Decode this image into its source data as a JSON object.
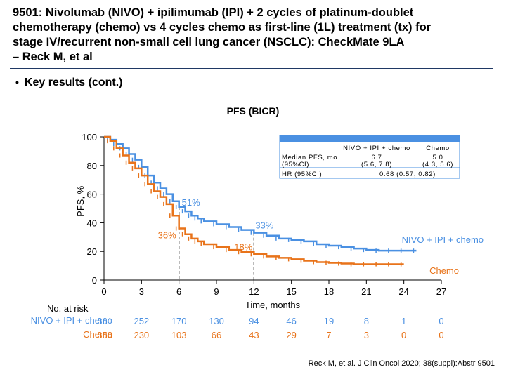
{
  "title_lines": [
    "9501: Nivolumab (NIVO) + ipilimumab (IPI) + 2 cycles of platinum-doublet",
    "chemotherapy (chemo) vs 4 cycles chemo as first-line (1L) treatment (tx) for",
    "stage IV/recurrent non-small cell lung cancer (NSCLC): CheckMate 9LA",
    "– Reck M, et al"
  ],
  "bullet": "Key results (cont.)",
  "citation": "Reck M, et al. J Clin Oncol 2020; 38(suppl):Abstr 9501",
  "colors": {
    "nivo": "#4a90e2",
    "chemo": "#e8731a",
    "rule": "#1f3864",
    "box": "#4a90e2"
  },
  "chart_data": {
    "type": "line",
    "title": "PFS (BICR)",
    "xlabel": "Time, months",
    "ylabel": "PFS, %",
    "xlim": [
      0,
      27
    ],
    "ylim": [
      0,
      100
    ],
    "xticks": [
      0,
      3,
      6,
      9,
      12,
      15,
      18,
      21,
      24,
      27
    ],
    "yticks": [
      0,
      20,
      40,
      60,
      80,
      100
    ],
    "series": [
      {
        "name": "NIVO + IPI + chemo",
        "x": [
          0,
          0.5,
          1.0,
          1.5,
          2.0,
          2.5,
          3.0,
          3.5,
          4.0,
          4.5,
          5.0,
          5.5,
          6.0,
          6.5,
          7.0,
          7.5,
          8.0,
          9.0,
          10.0,
          11.0,
          12.0,
          13.0,
          14.0,
          15.0,
          16.0,
          17.0,
          18.0,
          19.0,
          20.0,
          21.0,
          22.0,
          23.0,
          24.0,
          25.0
        ],
        "y": [
          100,
          98,
          95,
          92,
          88,
          84,
          79,
          73,
          68,
          64,
          60,
          55,
          51,
          48,
          45,
          43,
          41,
          39,
          37,
          35,
          33,
          31,
          29,
          28,
          27,
          25,
          24,
          23,
          22,
          21,
          20.5,
          20.5,
          20.5,
          20.5
        ]
      },
      {
        "name": "Chemo",
        "x": [
          0,
          0.5,
          1.0,
          1.5,
          2.0,
          2.5,
          3.0,
          3.5,
          4.0,
          4.5,
          5.0,
          5.5,
          6.0,
          6.5,
          7.0,
          7.5,
          8.0,
          9.0,
          10.0,
          11.0,
          12.0,
          13.0,
          14.0,
          15.0,
          16.0,
          17.0,
          18.0,
          19.0,
          20.0,
          21.0,
          22.0,
          23.0,
          24.0
        ],
        "y": [
          100,
          97,
          92,
          87,
          82,
          78,
          73,
          67,
          62,
          58,
          53,
          45,
          36,
          32,
          29,
          27,
          25,
          23,
          21,
          19.5,
          18,
          16.5,
          15.5,
          14.5,
          13.5,
          12.5,
          12,
          11.5,
          11,
          11,
          11,
          11,
          11
        ]
      }
    ],
    "annotations": [
      {
        "text": "51%",
        "x": 6,
        "y": 51,
        "series": "NIVO + IPI + chemo"
      },
      {
        "text": "36%",
        "x": 6,
        "y": 36,
        "series": "Chemo"
      },
      {
        "text": "33%",
        "x": 12,
        "y": 33,
        "series": "NIVO + IPI + chemo"
      },
      {
        "text": "18%",
        "x": 12,
        "y": 18,
        "series": "Chemo"
      }
    ],
    "reference_lines_x": [
      6,
      12
    ],
    "series_labels": [
      "NIVO + IPI + chemo",
      "Chemo"
    ],
    "stats_table": {
      "col_headers": [
        "NIVO + IPI + chemo",
        "Chemo"
      ],
      "rows": [
        {
          "label_lines": [
            "Median PFS, mo",
            "(95%CI)"
          ],
          "nivo_lines": [
            "6.7",
            "(5.6, 7.8)"
          ],
          "chemo_lines": [
            "5.0",
            "(4.3, 5.6)"
          ]
        },
        {
          "label_lines": [
            "HR (95%CI)"
          ],
          "combined": "0.68 (0.57, 0.82)"
        }
      ]
    },
    "at_risk": {
      "header": "No. at risk",
      "rows": [
        {
          "label": "NIVO + IPI + chemo",
          "values": [
            "361",
            "252",
            "170",
            "130",
            "94",
            "46",
            "19",
            "8",
            "1",
            "0"
          ]
        },
        {
          "label": "Chemo",
          "values": [
            "358",
            "230",
            "103",
            "66",
            "43",
            "29",
            "7",
            "3",
            "0",
            "0"
          ]
        }
      ]
    }
  }
}
